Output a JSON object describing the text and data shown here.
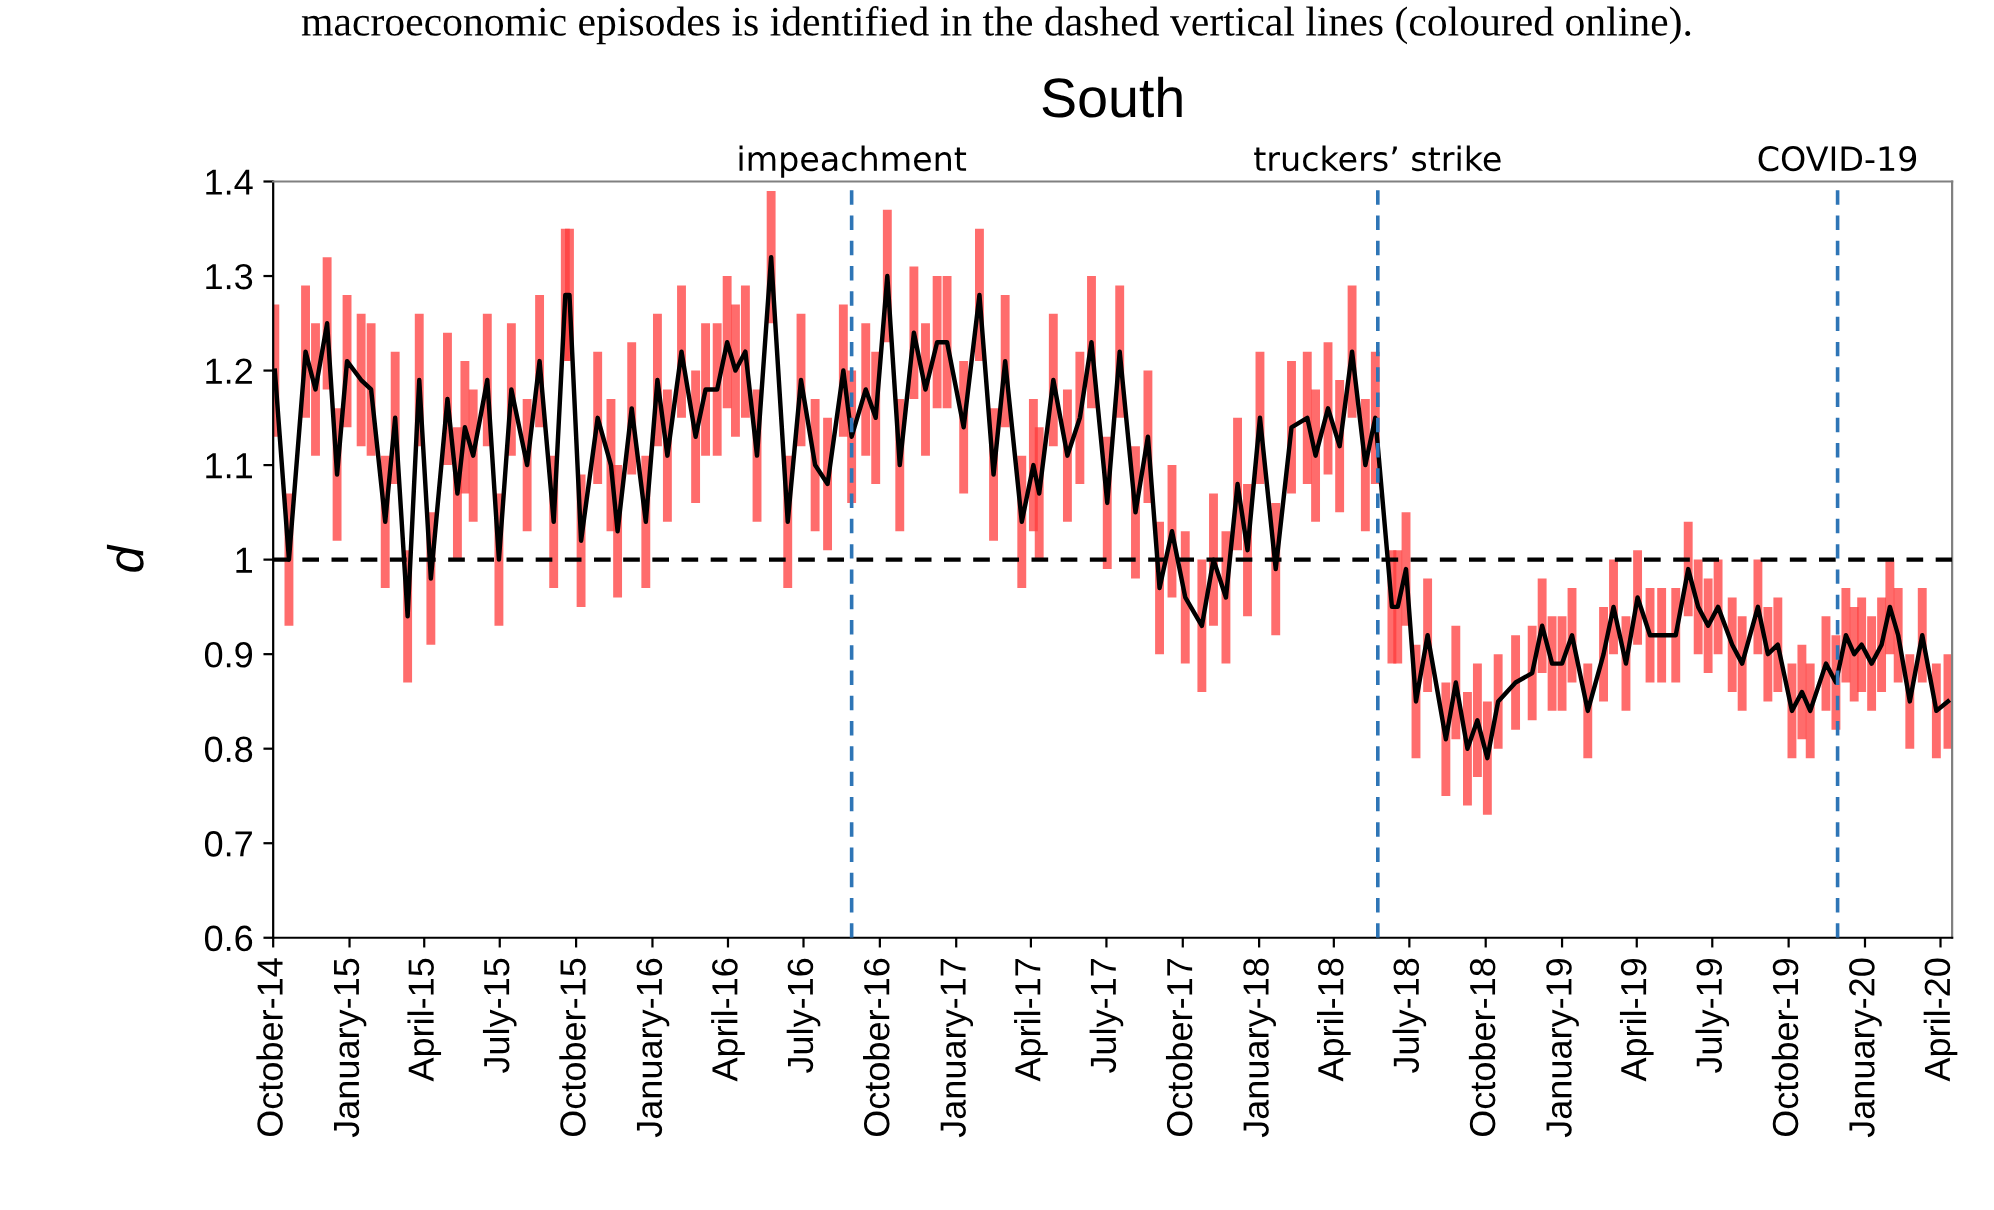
{
  "chart_data": {
    "type": "line",
    "title": "South",
    "ylabel": "d",
    "annotations": [
      "macroeconomic episodes is identified in the dashed vertical lines (coloured online)."
    ],
    "x": [
      "2014-10-03",
      "2014-10-20",
      "2014-11-09",
      "2014-11-21",
      "2014-12-05",
      "2014-12-17",
      "2014-12-29",
      "2015-01-15",
      "2015-01-27",
      "2015-02-13",
      "2015-02-25",
      "2015-03-12",
      "2015-03-26",
      "2015-04-09",
      "2015-04-29",
      "2015-05-11",
      "2015-05-20",
      "2015-05-30",
      "2015-06-16",
      "2015-06-30",
      "2015-07-15",
      "2015-08-03",
      "2015-08-18",
      "2015-09-04",
      "2015-09-18",
      "2015-09-23",
      "2015-10-07",
      "2015-10-27",
      "2015-11-12",
      "2015-11-20",
      "2015-12-07",
      "2015-12-24",
      "2016-01-07",
      "2016-01-19",
      "2016-02-05",
      "2016-02-22",
      "2016-03-05",
      "2016-03-19",
      "2016-03-31",
      "2016-04-10",
      "2016-04-22",
      "2016-05-06",
      "2016-05-23",
      "2016-06-12",
      "2016-06-28",
      "2016-07-15",
      "2016-07-30",
      "2016-08-18",
      "2016-08-28",
      "2016-09-14",
      "2016-09-26",
      "2016-10-10",
      "2016-10-25",
      "2016-11-11",
      "2016-11-25",
      "2016-12-09",
      "2016-12-21",
      "2017-01-10",
      "2017-01-29",
      "2017-02-15",
      "2017-03-01",
      "2017-03-21",
      "2017-04-04",
      "2017-04-11",
      "2017-04-28",
      "2017-05-15",
      "2017-05-30",
      "2017-06-13",
      "2017-07-02",
      "2017-07-17",
      "2017-08-05",
      "2017-08-20",
      "2017-09-03",
      "2017-09-18",
      "2017-10-04",
      "2017-10-24",
      "2017-11-07",
      "2017-11-22",
      "2017-12-06",
      "2017-12-18",
      "2018-01-02",
      "2018-01-21",
      "2018-02-09",
      "2018-02-28",
      "2018-03-10",
      "2018-03-25",
      "2018-04-08",
      "2018-04-23",
      "2018-05-09",
      "2018-05-21",
      "2018-06-10",
      "2018-06-17",
      "2018-06-27",
      "2018-07-09",
      "2018-07-23",
      "2018-08-14",
      "2018-08-26",
      "2018-09-09",
      "2018-09-21",
      "2018-10-03",
      "2018-10-16",
      "2018-11-06",
      "2018-11-26",
      "2018-12-08",
      "2018-12-20",
      "2019-01-01",
      "2019-01-13",
      "2019-02-01",
      "2019-02-20",
      "2019-03-04",
      "2019-03-19",
      "2019-04-02",
      "2019-04-17",
      "2019-05-01",
      "2019-05-18",
      "2019-06-02",
      "2019-06-14",
      "2019-06-26",
      "2019-07-08",
      "2019-07-25",
      "2019-08-06",
      "2019-08-25",
      "2019-09-06",
      "2019-09-18",
      "2019-10-05",
      "2019-10-17",
      "2019-10-27",
      "2019-11-15",
      "2019-11-27",
      "2019-12-09",
      "2019-12-19",
      "2019-12-28",
      "2020-01-09",
      "2020-01-21",
      "2020-01-31",
      "2020-02-10",
      "2020-02-24",
      "2020-03-10",
      "2020-03-27",
      "2020-04-10"
    ],
    "series": [
      {
        "color": "#000000",
        "values": [
          1.2,
          1.0,
          1.22,
          1.18,
          1.25,
          1.09,
          1.21,
          1.19,
          1.18,
          1.04,
          1.15,
          0.94,
          1.19,
          0.98,
          1.17,
          1.07,
          1.14,
          1.11,
          1.19,
          1.0,
          1.18,
          1.1,
          1.21,
          1.04,
          1.28,
          1.28,
          1.02,
          1.15,
          1.1,
          1.03,
          1.16,
          1.04,
          1.19,
          1.11,
          1.22,
          1.13,
          1.18,
          1.18,
          1.23,
          1.2,
          1.22,
          1.11,
          1.32,
          1.04,
          1.19,
          1.1,
          1.08,
          1.2,
          1.13,
          1.18,
          1.15,
          1.3,
          1.1,
          1.24,
          1.18,
          1.23,
          1.23,
          1.14,
          1.28,
          1.09,
          1.21,
          1.04,
          1.1,
          1.07,
          1.19,
          1.11,
          1.15,
          1.23,
          1.06,
          1.22,
          1.05,
          1.13,
          0.97,
          1.03,
          0.96,
          0.93,
          1.0,
          0.96,
          1.08,
          1.01,
          1.15,
          0.99,
          1.14,
          1.15,
          1.11,
          1.16,
          1.12,
          1.22,
          1.1,
          1.15,
          0.95,
          0.95,
          0.99,
          0.85,
          0.92,
          0.81,
          0.87,
          0.8,
          0.83,
          0.79,
          0.85,
          0.87,
          0.88,
          0.93,
          0.89,
          0.89,
          0.92,
          0.84,
          0.9,
          0.95,
          0.89,
          0.96,
          0.92,
          0.92,
          0.92,
          0.99,
          0.95,
          0.93,
          0.95,
          0.91,
          0.89,
          0.95,
          0.9,
          0.91,
          0.84,
          0.86,
          0.84,
          0.89,
          0.87,
          0.92,
          0.9,
          0.91,
          0.89,
          0.91,
          0.95,
          0.92,
          0.85,
          0.92,
          0.84,
          0.85
        ],
        "errors": [
          0.07,
          0.07,
          0.07,
          0.07,
          0.07,
          0.07,
          0.07,
          0.07,
          0.07,
          0.07,
          0.07,
          0.07,
          0.07,
          0.07,
          0.07,
          0.07,
          0.07,
          0.07,
          0.07,
          0.07,
          0.07,
          0.07,
          0.07,
          0.07,
          0.07,
          0.07,
          0.07,
          0.07,
          0.07,
          0.07,
          0.07,
          0.07,
          0.07,
          0.07,
          0.07,
          0.07,
          0.07,
          0.07,
          0.07,
          0.07,
          0.07,
          0.07,
          0.07,
          0.07,
          0.07,
          0.07,
          0.07,
          0.07,
          0.07,
          0.07,
          0.07,
          0.07,
          0.07,
          0.07,
          0.07,
          0.07,
          0.07,
          0.07,
          0.07,
          0.07,
          0.07,
          0.07,
          0.07,
          0.07,
          0.07,
          0.07,
          0.07,
          0.07,
          0.07,
          0.07,
          0.07,
          0.07,
          0.07,
          0.07,
          0.07,
          0.07,
          0.07,
          0.07,
          0.07,
          0.07,
          0.07,
          0.07,
          0.07,
          0.07,
          0.07,
          0.07,
          0.07,
          0.07,
          0.07,
          0.07,
          0.06,
          0.06,
          0.06,
          0.06,
          0.06,
          0.06,
          0.06,
          0.06,
          0.06,
          0.06,
          0.05,
          0.05,
          0.05,
          0.05,
          0.05,
          0.05,
          0.05,
          0.05,
          0.05,
          0.05,
          0.05,
          0.05,
          0.05,
          0.05,
          0.05,
          0.05,
          0.05,
          0.05,
          0.05,
          0.05,
          0.05,
          0.05,
          0.05,
          0.05,
          0.05,
          0.05,
          0.05,
          0.05,
          0.05,
          0.05,
          0.05,
          0.05,
          0.05,
          0.05,
          0.05,
          0.05,
          0.05,
          0.05,
          0.05,
          0.05
        ]
      }
    ],
    "xlim": [
      "2014-10-01",
      "2020-04-15"
    ],
    "xticks": [
      {
        "value": "2014-10-01",
        "label": "October-14"
      },
      {
        "value": "2015-01-01",
        "label": "January-15"
      },
      {
        "value": "2015-04-01",
        "label": "April-15"
      },
      {
        "value": "2015-07-01",
        "label": "July-15"
      },
      {
        "value": "2015-10-01",
        "label": "October-15"
      },
      {
        "value": "2016-01-01",
        "label": "January-16"
      },
      {
        "value": "2016-04-01",
        "label": "April-16"
      },
      {
        "value": "2016-07-01",
        "label": "July-16"
      },
      {
        "value": "2016-10-01",
        "label": "October-16"
      },
      {
        "value": "2017-01-01",
        "label": "January-17"
      },
      {
        "value": "2017-04-01",
        "label": "April-17"
      },
      {
        "value": "2017-07-01",
        "label": "July-17"
      },
      {
        "value": "2017-10-01",
        "label": "October-17"
      },
      {
        "value": "2018-01-01",
        "label": "January-18"
      },
      {
        "value": "2018-04-01",
        "label": "April-18"
      },
      {
        "value": "2018-07-01",
        "label": "July-18"
      },
      {
        "value": "2018-10-01",
        "label": "October-18"
      },
      {
        "value": "2019-01-01",
        "label": "January-19"
      },
      {
        "value": "2019-04-01",
        "label": "April-19"
      },
      {
        "value": "2019-07-01",
        "label": "July-19"
      },
      {
        "value": "2019-10-01",
        "label": "October-19"
      },
      {
        "value": "2020-01-01",
        "label": "January-20"
      },
      {
        "value": "2020-04-01",
        "label": "April-20"
      }
    ],
    "ylim": [
      0.6,
      1.4
    ],
    "yticks": [
      0.6,
      0.7,
      0.8,
      0.9,
      {
        "value": 1.0,
        "label": "1"
      },
      1.1,
      1.2,
      1.3,
      1.4
    ],
    "ref_lines": [
      {
        "axis": "y",
        "value": 1.0,
        "color": "#000000",
        "line_style": "dashed"
      },
      {
        "axis": "x",
        "value": "2016-08-28",
        "label": "impeachment",
        "color": "#2e75b6",
        "line_style": "dashed"
      },
      {
        "axis": "x",
        "value": "2018-05-24",
        "label": "truckers’ strike",
        "color": "#2e75b6",
        "line_style": "dashed"
      },
      {
        "axis": "x",
        "value": "2019-11-29",
        "label": "COVID-19",
        "color": "#2e75b6",
        "line_style": "dashed"
      }
    ],
    "grid": false,
    "legend": false,
    "marker": "none",
    "line_style": "solid"
  }
}
